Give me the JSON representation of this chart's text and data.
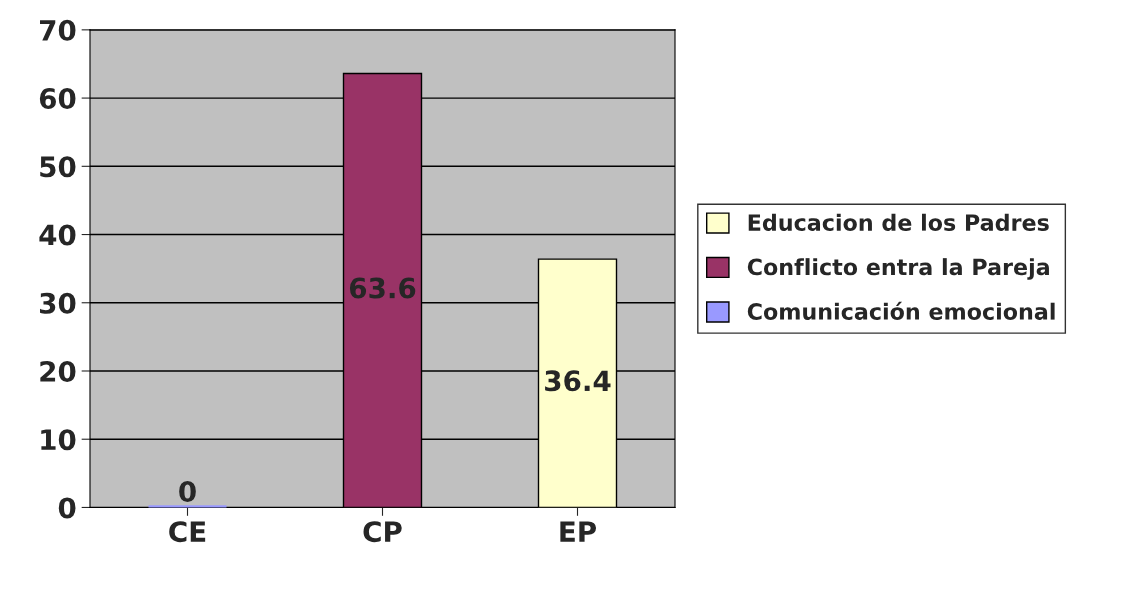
{
  "chart_data": {
    "type": "bar",
    "categories": [
      "CE",
      "CP",
      "EP"
    ],
    "series": [
      {
        "name": "Educacion de los Padres",
        "color": "#ffffcc",
        "values": [
          null,
          null,
          36.4
        ]
      },
      {
        "name": "Conflicto entra la Pareja",
        "color": "#993366",
        "values": [
          null,
          63.6,
          null
        ]
      },
      {
        "name": "Comunicación emocional",
        "color": "#9999ff",
        "values": [
          0,
          null,
          null
        ]
      }
    ],
    "ylim": [
      0,
      70
    ],
    "yticks": [
      0,
      10,
      20,
      30,
      40,
      50,
      60,
      70
    ],
    "grid": "y",
    "legend": "right",
    "data_labels": true
  }
}
